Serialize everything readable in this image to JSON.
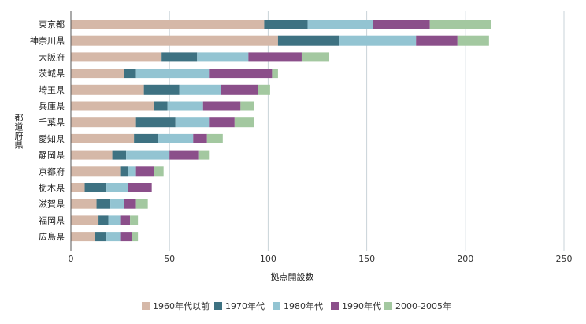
{
  "chart_data": {
    "type": "bar",
    "orientation": "horizontal",
    "stacked": true,
    "categories": [
      "東京都",
      "神奈川県",
      "大阪府",
      "茨城県",
      "埼玉県",
      "兵庫県",
      "千葉県",
      "愛知県",
      "静岡県",
      "京都府",
      "栃木県",
      "滋賀県",
      "福岡県",
      "広島県"
    ],
    "series": [
      {
        "name": "1960年代以前",
        "color": "#d5b8a8",
        "values": [
          98,
          105,
          46,
          27,
          37,
          42,
          33,
          32,
          21,
          25,
          7,
          13,
          14,
          12
        ]
      },
      {
        "name": "1970年代",
        "color": "#3e7282",
        "values": [
          22,
          31,
          18,
          6,
          18,
          7,
          20,
          12,
          7,
          4,
          11,
          7,
          5,
          6
        ]
      },
      {
        "name": "1980年代",
        "color": "#93c4d2",
        "values": [
          33,
          39,
          26,
          37,
          21,
          18,
          17,
          18,
          22,
          4,
          11,
          7,
          6,
          7
        ]
      },
      {
        "name": "1990年代",
        "color": "#8b4f8a",
        "values": [
          29,
          21,
          27,
          32,
          19,
          19,
          13,
          7,
          15,
          9,
          12,
          6,
          5,
          6
        ]
      },
      {
        "name": "2000-2005年",
        "color": "#a3c8a0",
        "values": [
          31,
          16,
          14,
          3,
          6,
          7,
          10,
          8,
          5,
          5,
          0,
          6,
          4,
          3
        ]
      }
    ],
    "xlim": [
      0,
      250
    ],
    "xticks": [
      "0",
      "50",
      "100",
      "150",
      "200",
      "250"
    ],
    "xlabel": "拠点開設数",
    "ylabel": "都道府県",
    "legend_position": "bottom",
    "grid": true
  }
}
